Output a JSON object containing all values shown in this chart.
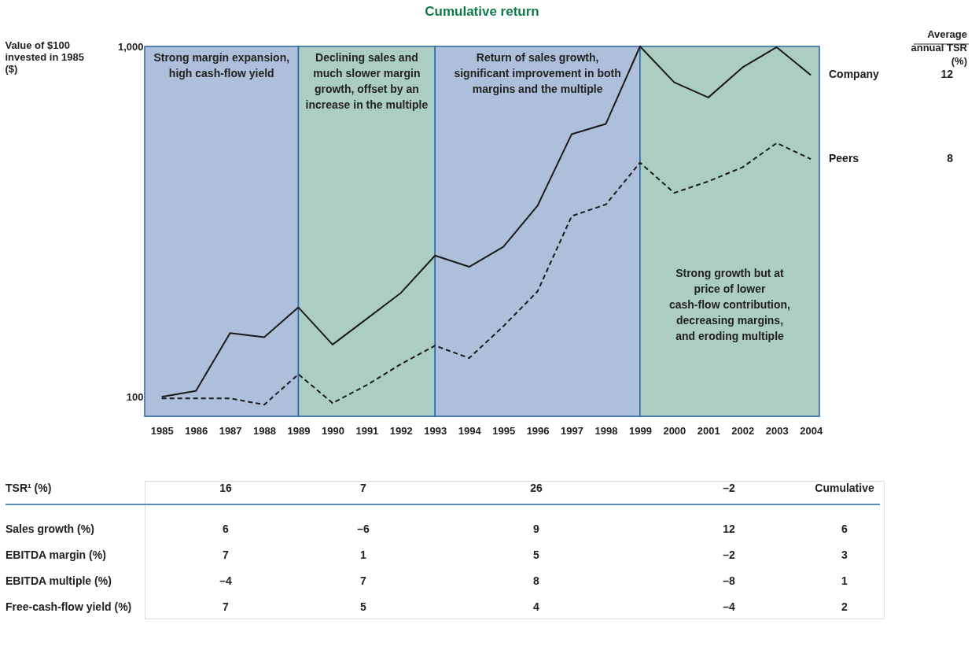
{
  "chart_data": [
    {
      "type": "line",
      "title": "Cumulative return",
      "ylabel": "Value of $100\ninvested in 1985\n($)",
      "log": true,
      "x": [
        1985,
        1986,
        1987,
        1988,
        1989,
        1990,
        1991,
        1992,
        1993,
        1994,
        1995,
        1996,
        1997,
        1998,
        1999,
        2000,
        2001,
        2002,
        2003,
        2004
      ],
      "xlim": [
        1984.5,
        2004.25
      ],
      "xticks": [
        1985,
        1986,
        1987,
        1988,
        1989,
        1990,
        1991,
        1992,
        1993,
        1994,
        1995,
        1996,
        1997,
        1998,
        1999,
        2000,
        2001,
        2002,
        2003,
        2004
      ],
      "ylim": [
        88,
        1000
      ],
      "yticks": [
        100,
        {
          "value": 1000,
          "label": "1,000"
        }
      ],
      "series": [
        {
          "name": "Company",
          "color": "#1a1a1a",
          "line_style": "solid",
          "values": [
            100,
            104,
            152,
            148,
            180,
            141,
            167,
            198,
            253,
            235,
            268,
            351,
            562,
            601,
            1000,
            790,
            715,
            871,
            995,
            828
          ]
        },
        {
          "name": "Peers",
          "color": "#1a1a1a",
          "line_style": "dashed",
          "values": [
            99,
            99,
            99,
            95,
            116,
            96,
            108,
            124,
            140,
            129,
            159,
            200,
            328,
            354,
            466,
            382,
            412,
            452,
            530,
            477
          ]
        }
      ],
      "bands": [
        {
          "axis": "x",
          "from": 1984.5,
          "to": 1989,
          "color": "#adbfda",
          "label": "Strong margin expansion,\nhigh cash-flow yield"
        },
        {
          "axis": "x",
          "from": 1989,
          "to": 1993,
          "color": "#abcdc4",
          "label": "Declining sales and\nmuch slower margin\ngrowth, offset by an\nincrease in the multiple"
        },
        {
          "axis": "x",
          "from": 1993,
          "to": 1999,
          "color": "#adbfda",
          "label": "Return of sales growth,\nsignificant improvement in both\nmargins and the multiple"
        },
        {
          "axis": "x",
          "from": 1999,
          "to": 2004.25,
          "color": "#abcdc4",
          "label": "Strong growth but at\nprice of lower\ncash-flow contribution,\ndecreasing margins,\nand eroding multiple"
        }
      ],
      "annotations": [
        "Average\nannual TSR\n(%)",
        "12",
        "8"
      ]
    },
    {
      "type": "other",
      "annotations": [
        "TSR¹ (%)",
        "16",
        "7",
        "26",
        "–2",
        "Cumulative",
        "Sales growth (%)",
        "6",
        "–6",
        "9",
        "12",
        "6",
        "EBITDA margin (%)",
        "7",
        "1",
        "5",
        "–2",
        "3",
        "EBITDA multiple (%)",
        "–4",
        "7",
        "8",
        "–8",
        "1",
        "Free-cash-flow yield (%)",
        "7",
        "5",
        "4",
        "–4",
        "2"
      ]
    }
  ]
}
